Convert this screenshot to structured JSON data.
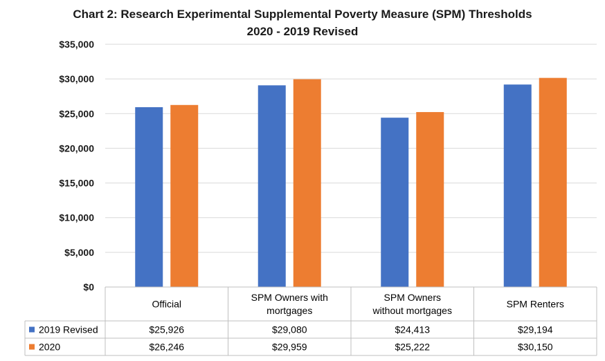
{
  "chart_data": {
    "type": "bar",
    "title": "Chart 2: Research Experimental Supplemental Poverty Measure (SPM) Thresholds",
    "subtitle": "2020 - 2019 Revised",
    "categories": [
      [
        "Official"
      ],
      [
        "SPM Owners with",
        "mortgages"
      ],
      [
        "SPM Owners",
        "without mortgages"
      ],
      [
        "SPM Renters"
      ]
    ],
    "series": [
      {
        "name": "2019 Revised",
        "color": "#4472C4",
        "values": [
          25926,
          29080,
          24413,
          29194
        ],
        "labels": [
          "$25,926",
          "$29,080",
          "$24,413",
          "$29,194"
        ]
      },
      {
        "name": "2020",
        "color": "#ED7D31",
        "values": [
          26246,
          29959,
          25222,
          30150
        ],
        "labels": [
          "$26,246",
          "$29,959",
          "$25,222",
          "$30,150"
        ]
      }
    ],
    "ylim": [
      0,
      35000
    ],
    "yticks": [
      0,
      5000,
      10000,
      15000,
      20000,
      25000,
      30000,
      35000
    ],
    "ytick_labels": [
      "$0",
      "$5,000",
      "$10,000",
      "$15,000",
      "$20,000",
      "$25,000",
      "$30,000",
      "$35,000"
    ],
    "grid": true,
    "data_table": true
  }
}
